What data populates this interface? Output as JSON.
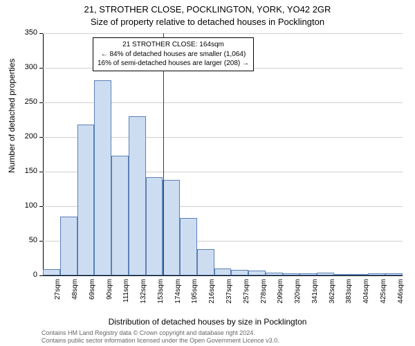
{
  "title": "21, STROTHER CLOSE, POCKLINGTON, YORK, YO42 2GR",
  "subtitle": "Size of property relative to detached houses in Pocklington",
  "y_axis_label": "Number of detached properties",
  "x_axis_label": "Distribution of detached houses by size in Pocklington",
  "footer_line1": "Contains HM Land Registry data © Crown copyright and database right 2024.",
  "footer_line2": "Contains public sector information licensed under the Open Government Licence v3.0.",
  "chart": {
    "type": "histogram",
    "ylim": [
      0,
      350
    ],
    "ytick_step": 50,
    "y_ticks": [
      0,
      50,
      100,
      150,
      200,
      250,
      300,
      350
    ],
    "categories": [
      "27sqm",
      "48sqm",
      "69sqm",
      "90sqm",
      "111sqm",
      "132sqm",
      "153sqm",
      "174sqm",
      "195sqm",
      "216sqm",
      "237sqm",
      "257sqm",
      "278sqm",
      "299sqm",
      "320sqm",
      "341sqm",
      "362sqm",
      "383sqm",
      "404sqm",
      "425sqm",
      "446sqm"
    ],
    "values": [
      9,
      85,
      218,
      282,
      173,
      230,
      142,
      138,
      83,
      38,
      10,
      8,
      7,
      4,
      3,
      3,
      4,
      1,
      1,
      3,
      3
    ],
    "bar_fill": "#cdddf1",
    "bar_border": "#5a7fb5",
    "background_color": "#ffffff",
    "grid_color": "#d0d0d0",
    "reference_line_x": 164,
    "reference_line_color": "#cc0000",
    "annotation": {
      "line1": "21 STROTHER CLOSE: 164sqm",
      "line2": "← 84% of detached houses are smaller (1,064)",
      "line3": "16% of semi-detached houses are larger (208) →"
    }
  }
}
